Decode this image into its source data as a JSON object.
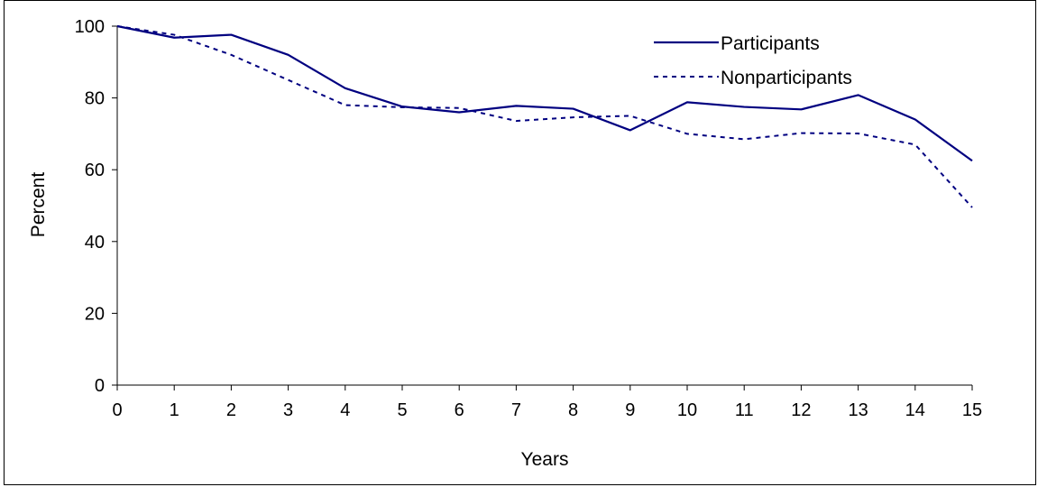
{
  "chart_data": {
    "type": "line",
    "title": "",
    "xlabel": "Years",
    "ylabel": "Percent",
    "x": [
      0,
      1,
      2,
      3,
      4,
      5,
      6,
      7,
      8,
      9,
      10,
      11,
      12,
      13,
      14,
      15
    ],
    "xlim": [
      0,
      15
    ],
    "ylim": [
      0,
      100
    ],
    "yticks": [
      0,
      20,
      40,
      60,
      80,
      100
    ],
    "grid": false,
    "legend_position": "top-right",
    "series": [
      {
        "name": "Participants",
        "line_style": "solid",
        "color": "#000080",
        "values": [
          100,
          96.8,
          97.6,
          92,
          82.7,
          77.6,
          76,
          77.8,
          77,
          71,
          78.8,
          77.5,
          76.8,
          80.8,
          74,
          62.5
        ]
      },
      {
        "name": "Nonparticipants",
        "line_style": "dotted",
        "color": "#000080",
        "values": [
          100,
          97.6,
          92,
          85,
          78,
          77.4,
          77.2,
          73.6,
          74.6,
          75,
          70,
          68.5,
          70.2,
          70.1,
          67,
          49.5
        ]
      }
    ]
  }
}
